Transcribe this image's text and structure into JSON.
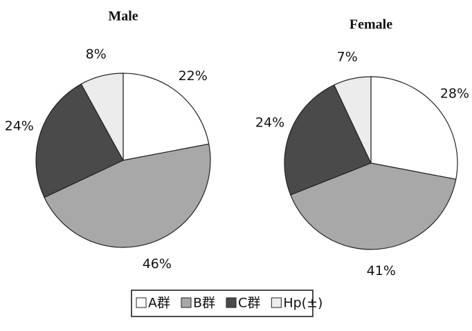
{
  "legend": {
    "categories": [
      "A群",
      "B群",
      "C群",
      "Hp(±)"
    ],
    "colors": [
      "#ffffff",
      "#a8a8a8",
      "#4a4a4a",
      "#ececec"
    ]
  },
  "chart_data": [
    {
      "type": "pie",
      "title": "Male",
      "values": [
        22,
        46,
        24,
        8
      ],
      "value_labels": [
        "22%",
        "46%",
        "24%",
        "8%"
      ]
    },
    {
      "type": "pie",
      "title": "Female",
      "values": [
        28,
        41,
        24,
        7
      ],
      "value_labels": [
        "28%",
        "41%",
        "24%",
        "7%"
      ]
    }
  ]
}
